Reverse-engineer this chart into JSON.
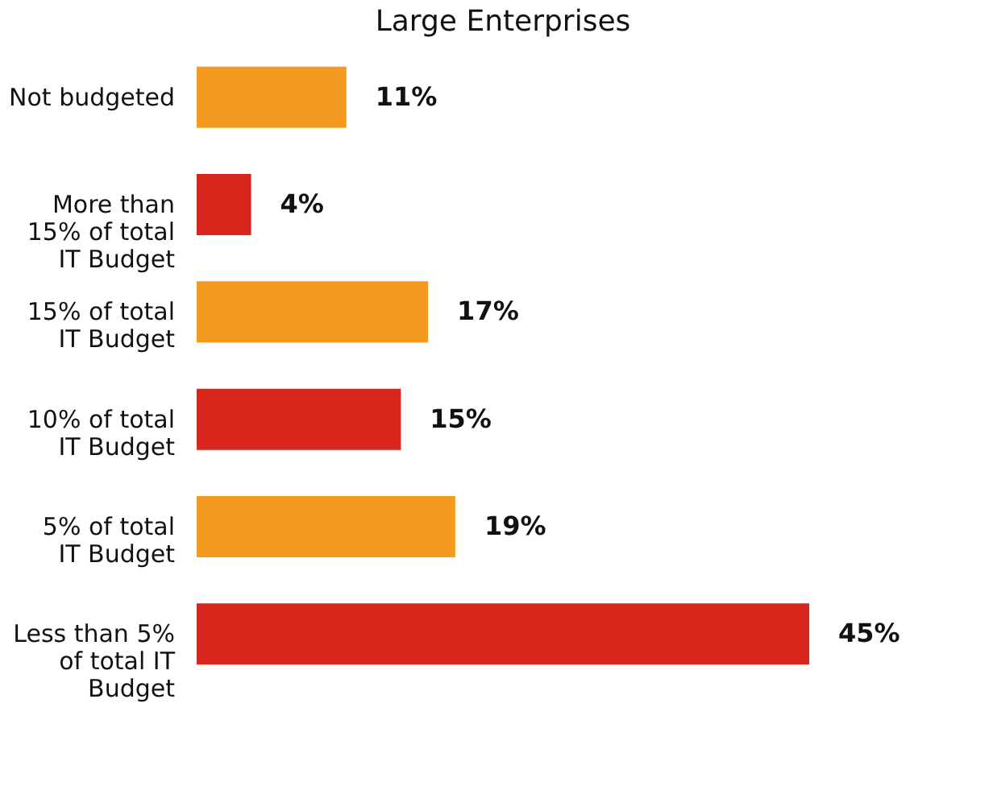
{
  "chart_data": {
    "type": "bar",
    "orientation": "horizontal",
    "title": "Large Enterprises",
    "categories": [
      "Not budgeted",
      "More than 15% of total IT Budget",
      "15% of total IT Budget",
      "10% of total IT Budget",
      "5% of total IT Budget",
      "Less than 5% of total IT Budget"
    ],
    "values": [
      11,
      4,
      17,
      15,
      19,
      45
    ],
    "colors": [
      "#f39a1f",
      "#d9261c",
      "#f39a1f",
      "#d9261c",
      "#f39a1f",
      "#d9261c"
    ],
    "value_labels": [
      "11%",
      "4%",
      "17%",
      "15%",
      "19%",
      "45%"
    ],
    "tick_labels": "y"
  }
}
